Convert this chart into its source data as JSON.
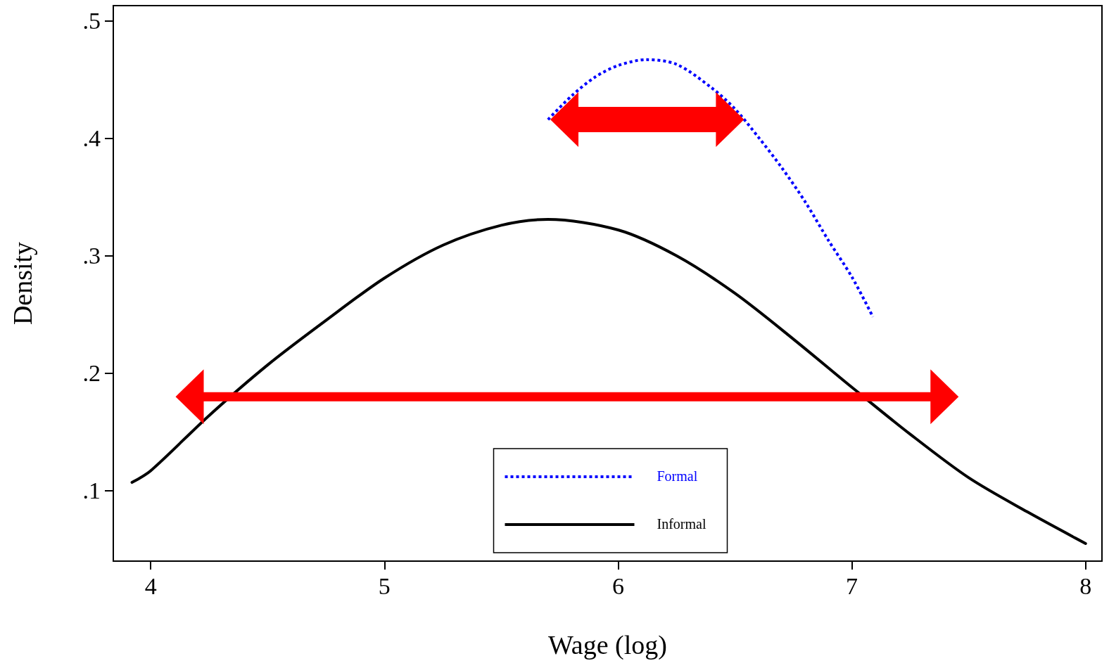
{
  "chart_data": {
    "type": "line",
    "xlabel": "Wage (log)",
    "ylabel": "Density",
    "xlim": [
      3.84,
      8.07
    ],
    "xticks": [
      4,
      5,
      6,
      7,
      8
    ],
    "ylim": [
      0.04,
      0.513
    ],
    "yticks": [
      {
        "value": 0.1,
        "label": ".1"
      },
      {
        "value": 0.2,
        "label": ".2"
      },
      {
        "value": 0.3,
        "label": ".3"
      },
      {
        "value": 0.4,
        "label": ".4"
      },
      {
        "value": 0.5,
        "label": ".5"
      }
    ],
    "grid": false,
    "legend": "bottom",
    "marker": "none",
    "series": [
      {
        "name": "Formal",
        "color": "#0000ff",
        "line_style": "dotted",
        "x": [
          5.7,
          5.8,
          5.9,
          6.0,
          6.12,
          6.25,
          6.4,
          6.5,
          6.6,
          6.7,
          6.8,
          6.9,
          7.0,
          7.09
        ],
        "values": [
          0.416,
          0.436,
          0.452,
          0.462,
          0.467,
          0.463,
          0.443,
          0.425,
          0.401,
          0.375,
          0.346,
          0.313,
          0.282,
          0.248
        ]
      },
      {
        "name": "Informal",
        "color": "#000000",
        "line_style": "solid",
        "x": [
          3.92,
          4.0,
          4.25,
          4.5,
          4.75,
          5.0,
          5.25,
          5.5,
          5.7,
          6.0,
          6.25,
          6.5,
          6.75,
          7.0,
          7.25,
          7.5,
          7.75,
          8.0
        ],
        "values": [
          0.107,
          0.117,
          0.164,
          0.207,
          0.245,
          0.281,
          0.309,
          0.326,
          0.331,
          0.322,
          0.3,
          0.268,
          0.229,
          0.188,
          0.148,
          0.111,
          0.082,
          0.055
        ]
      }
    ]
  }
}
